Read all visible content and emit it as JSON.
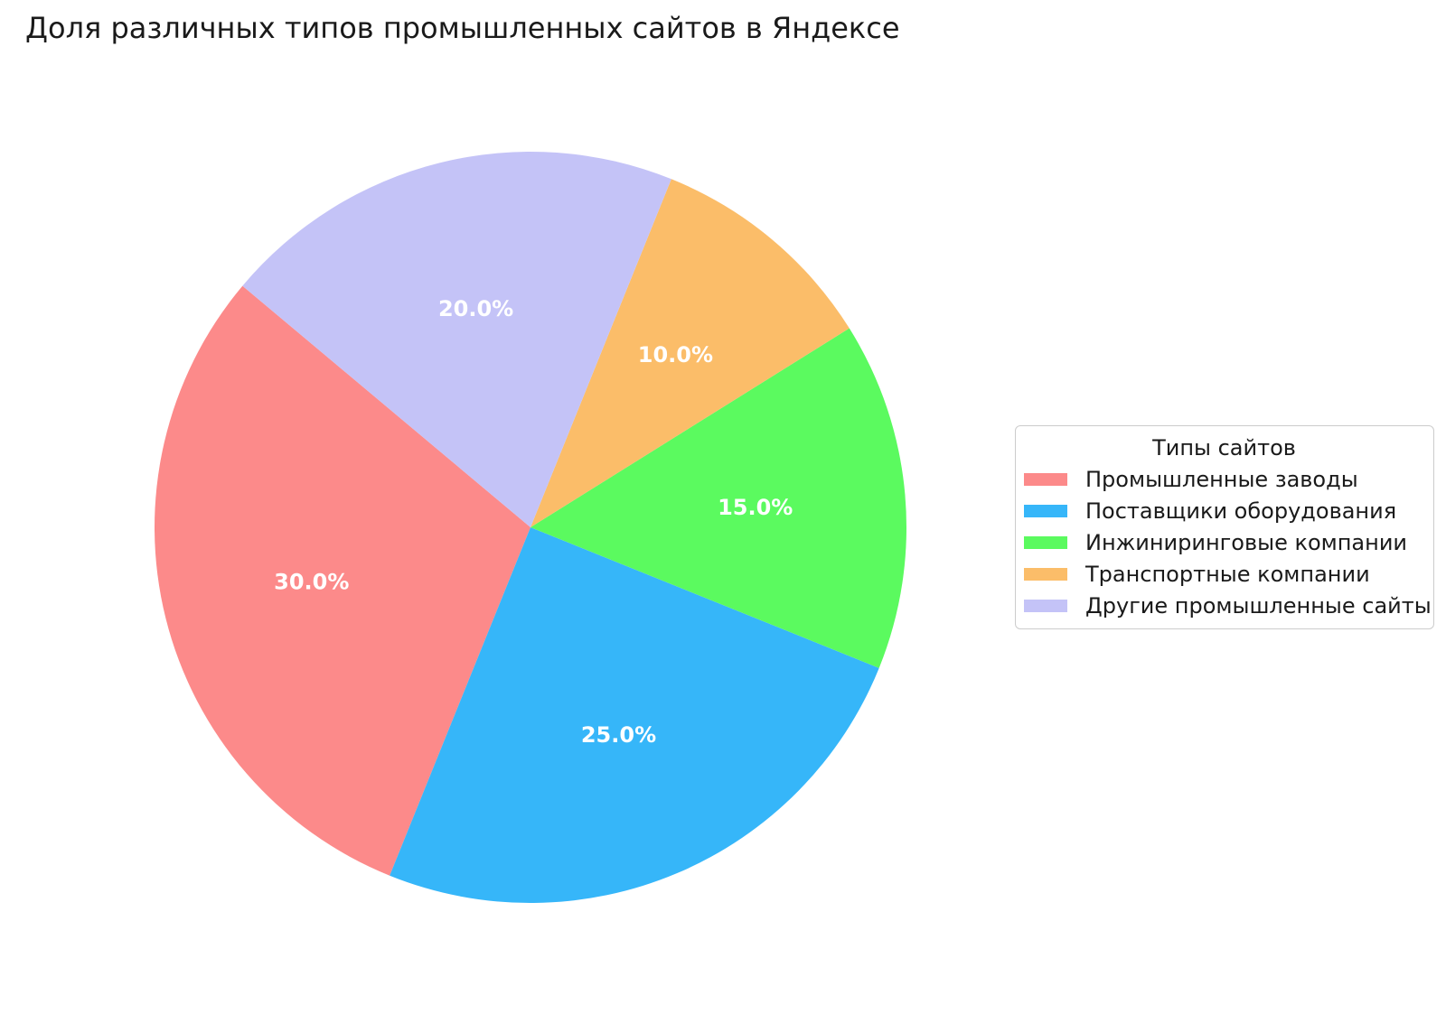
{
  "title": "Доля различных типов промышленных сайтов в Яндексе",
  "chart_data": {
    "type": "pie",
    "title": "Доля различных типов промышленных сайтов в Яндексе",
    "legend_title": "Типы сайтов",
    "legend_position": "center right",
    "start_angle": 140,
    "direction": "counterclockwise",
    "pct_label_color": "#ffffff",
    "pct_label_distance": 0.6,
    "background_color": "#ffffff",
    "slices": [
      {
        "label": "Промышленные заводы",
        "value": 30.0,
        "pct_label": "30.0%",
        "color": "#FC8A8A"
      },
      {
        "label": "Поставщики оборудования",
        "value": 25.0,
        "pct_label": "25.0%",
        "color": "#36B6F9"
      },
      {
        "label": "Инжиниринговые компании",
        "value": 15.0,
        "pct_label": "15.0%",
        "color": "#5BFA5F"
      },
      {
        "label": "Транспортные компании",
        "value": 10.0,
        "pct_label": "10.0%",
        "color": "#FBBD69"
      },
      {
        "label": "Другие промышленные сайты",
        "value": 20.0,
        "pct_label": "20.0%",
        "color": "#C4C3F7"
      }
    ]
  }
}
